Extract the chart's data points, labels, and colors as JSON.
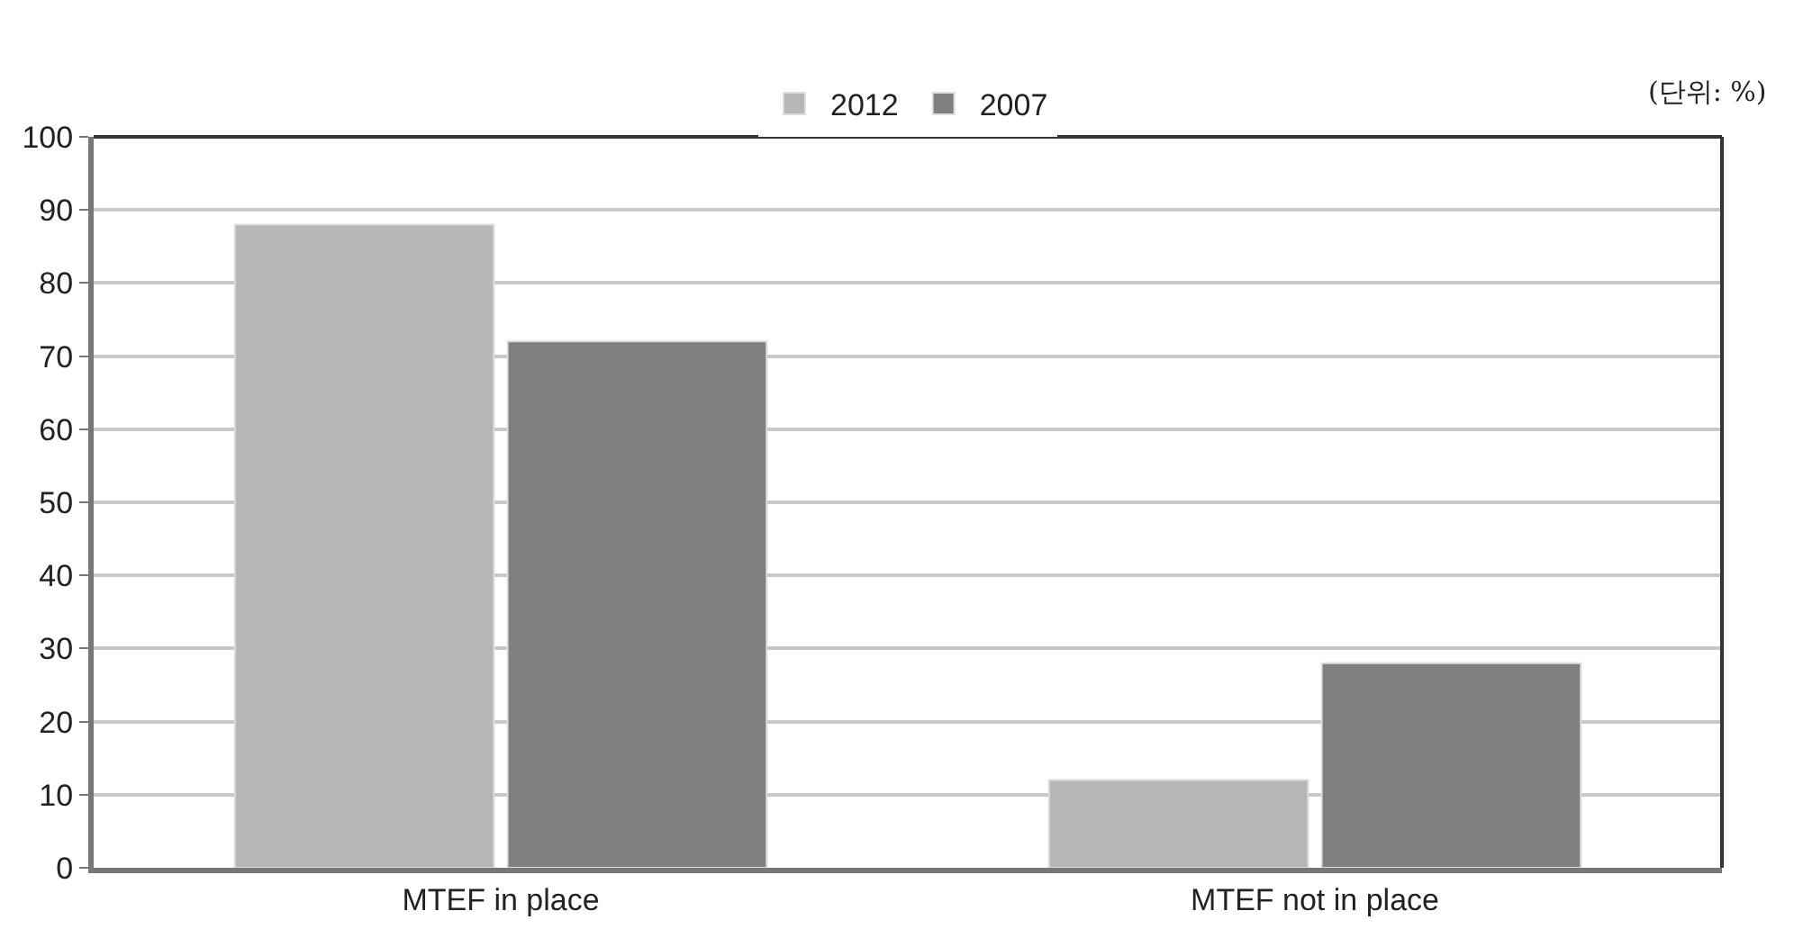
{
  "chart_data": {
    "type": "bar",
    "categories": [
      "MTEF in place",
      "MTEF not in place"
    ],
    "series": [
      {
        "name": "2012",
        "color": "#b7b7b7",
        "values": [
          88,
          12
        ]
      },
      {
        "name": "2007",
        "color": "#7f7f7f",
        "values": [
          72,
          28
        ]
      }
    ],
    "ylim": [
      0,
      100
    ],
    "yticks": [
      0,
      10,
      20,
      30,
      40,
      50,
      60,
      70,
      80,
      90,
      100
    ],
    "grid": "y",
    "legend": "top",
    "annotations": [
      "(단위: %)"
    ]
  }
}
